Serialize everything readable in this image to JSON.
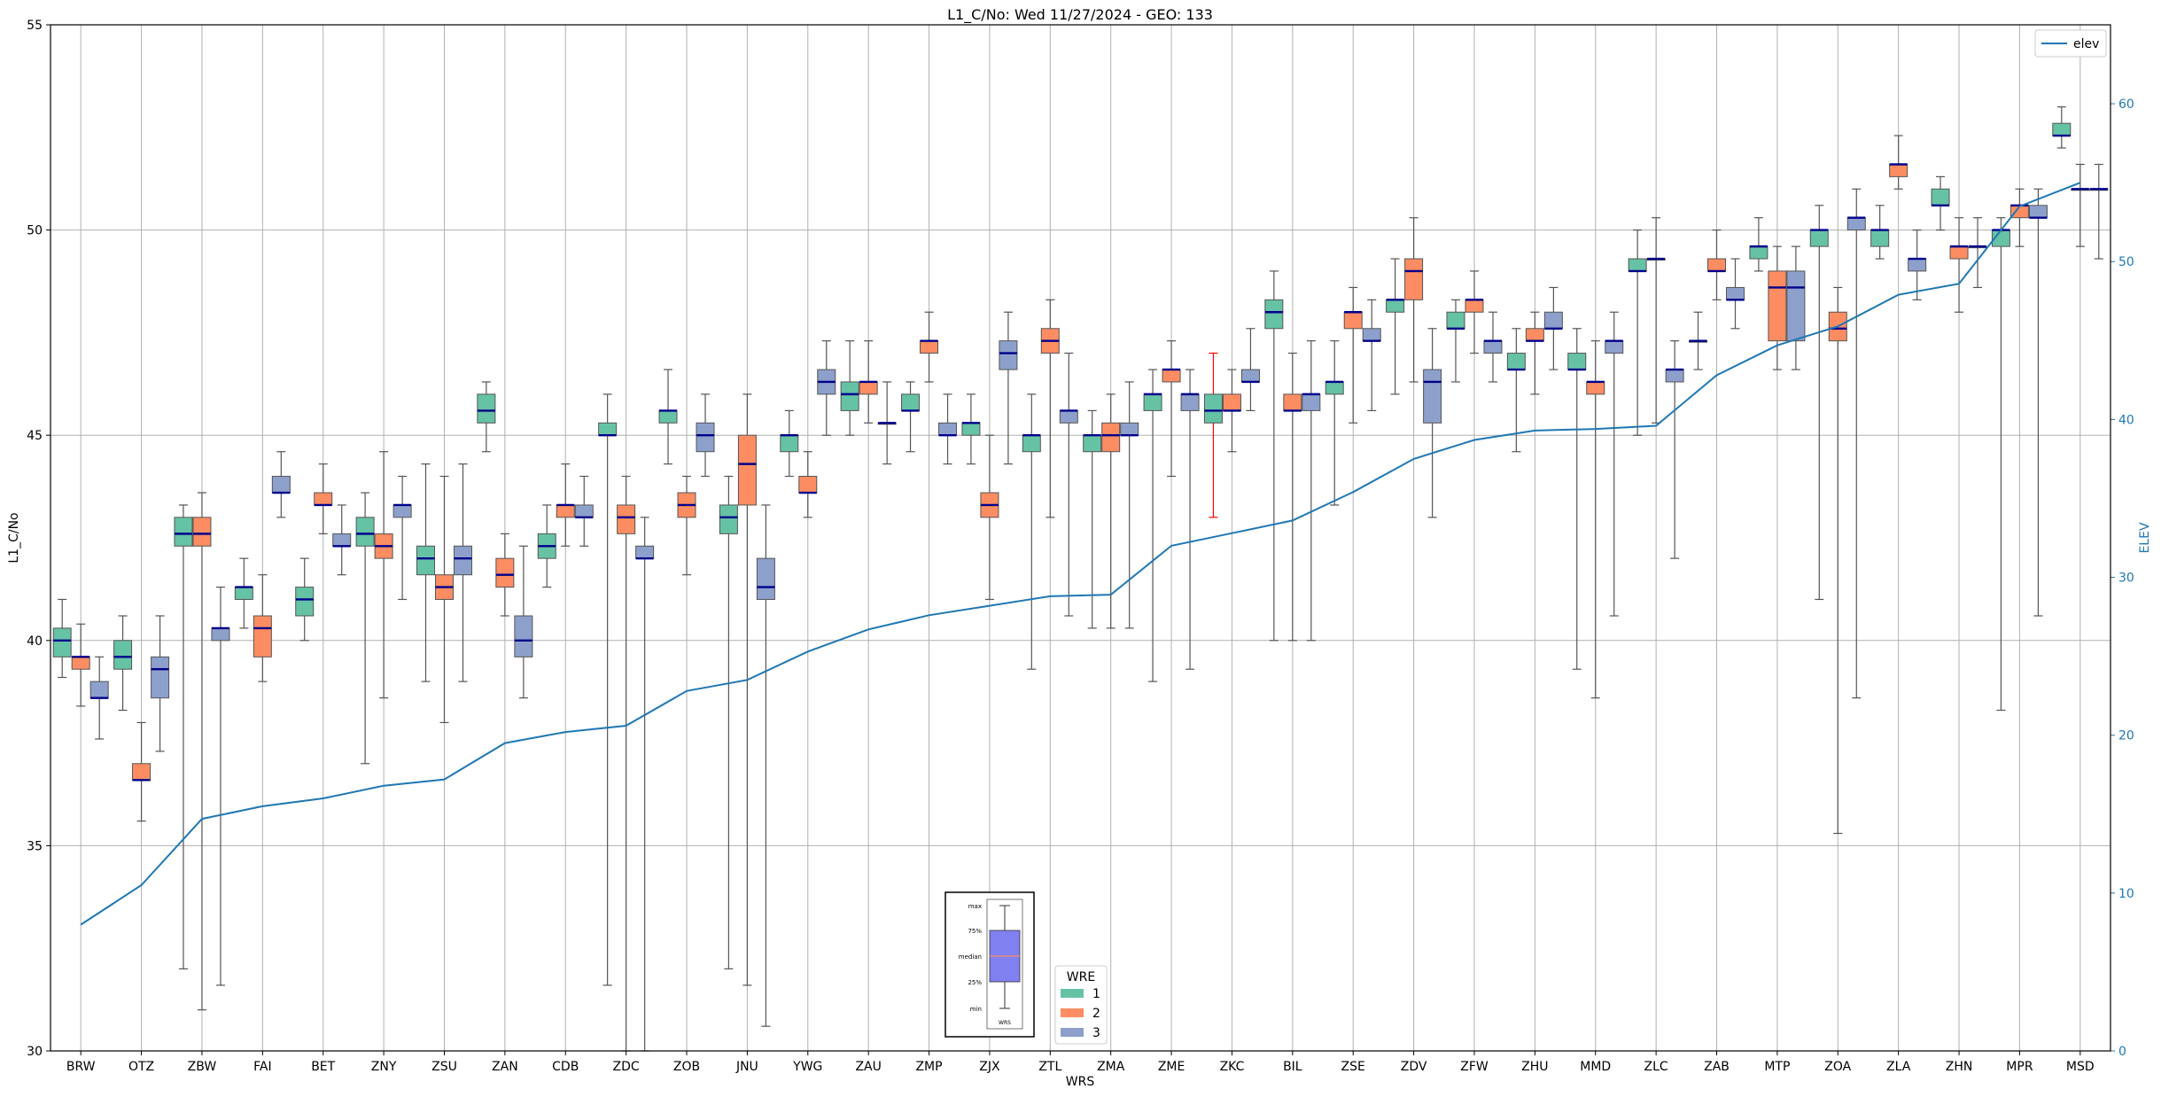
{
  "chart_data": {
    "type": "boxplot",
    "title": "L1_C/No: Wed 11/27/2024 - GEO: 133",
    "xlabel": "WRS",
    "ylabel": "L1_C/No",
    "y2label": "ELEV",
    "ylim": [
      30,
      55
    ],
    "y2lim": [
      0,
      65
    ],
    "yticks": [
      "30",
      "35",
      "40",
      "45",
      "50",
      "55"
    ],
    "y2ticks": [
      "0",
      "10",
      "20",
      "30",
      "40",
      "50",
      "60"
    ],
    "grid": true,
    "colors": {
      "1": "#66c2a5",
      "2": "#fc8d62",
      "3": "#8da0cb",
      "elev": "#1f77b4",
      "median": "#00008b",
      "highlight_whisker": "#ff0000"
    },
    "legend_elev": {
      "label": "elev",
      "placement": "top-right"
    },
    "legend_wre": {
      "title": "WRE",
      "entries": [
        "1",
        "2",
        "3"
      ],
      "placement": "bottom-center"
    },
    "key": {
      "labels": [
        "max",
        "75%",
        "median",
        "25%",
        "min"
      ],
      "xlabel": "WRS"
    },
    "categories": [
      "BRW",
      "OTZ",
      "ZBW",
      "FAI",
      "BET",
      "ZNY",
      "ZSU",
      "ZAN",
      "CDB",
      "ZDC",
      "ZOB",
      "JNU",
      "YWG",
      "ZAU",
      "ZMP",
      "ZJX",
      "ZTL",
      "ZMA",
      "ZME",
      "ZKC",
      "BIL",
      "ZSE",
      "ZDV",
      "ZFW",
      "ZHU",
      "MMD",
      "ZLC",
      "ZAB",
      "MTP",
      "ZOA",
      "ZLA",
      "ZHN",
      "MPR",
      "MSD"
    ],
    "elev": [
      8,
      10.5,
      14.7,
      15.5,
      16,
      16.8,
      17.2,
      19.5,
      20.2,
      20.6,
      22.8,
      23.5,
      25.3,
      26.7,
      27.6,
      28.2,
      28.8,
      28.9,
      32,
      32.8,
      33.6,
      35.4,
      37.5,
      38.7,
      39.3,
      39.4,
      39.6,
      42.8,
      44.7,
      45.9,
      47.9,
      48.6,
      53.5,
      55
    ],
    "boxes": [
      {
        "wrs": "BRW",
        "wre": 1,
        "min": 39.1,
        "q1": 39.6,
        "med": 40,
        "q3": 40.3,
        "max": 41
      },
      {
        "wrs": "BRW",
        "wre": 2,
        "min": 38.4,
        "q1": 39.3,
        "med": 39.6,
        "q3": 39.6,
        "max": 40.4
      },
      {
        "wrs": "BRW",
        "wre": 3,
        "min": 37.6,
        "q1": 38.6,
        "med": 38.6,
        "q3": 39,
        "max": 39.6
      },
      {
        "wrs": "OTZ",
        "wre": 1,
        "min": 38.3,
        "q1": 39.3,
        "med": 39.6,
        "q3": 40,
        "max": 40.6
      },
      {
        "wrs": "OTZ",
        "wre": 2,
        "min": 35.6,
        "q1": 36.6,
        "med": 36.6,
        "q3": 37,
        "max": 38
      },
      {
        "wrs": "OTZ",
        "wre": 3,
        "min": 37.3,
        "q1": 38.6,
        "med": 39.3,
        "q3": 39.6,
        "max": 40.6
      },
      {
        "wrs": "ZBW",
        "wre": 1,
        "min": 32,
        "q1": 42.3,
        "med": 42.6,
        "q3": 43,
        "max": 43.3
      },
      {
        "wrs": "ZBW",
        "wre": 2,
        "min": 31,
        "q1": 42.3,
        "med": 42.6,
        "q3": 43,
        "max": 43.6
      },
      {
        "wrs": "ZBW",
        "wre": 3,
        "min": 31.6,
        "q1": 40,
        "med": 40.3,
        "q3": 40.3,
        "max": 41.3
      },
      {
        "wrs": "FAI",
        "wre": 1,
        "min": 40.3,
        "q1": 41,
        "med": 41.3,
        "q3": 41.3,
        "max": 42
      },
      {
        "wrs": "FAI",
        "wre": 2,
        "min": 39,
        "q1": 39.6,
        "med": 40.3,
        "q3": 40.6,
        "max": 41.6
      },
      {
        "wrs": "FAI",
        "wre": 3,
        "min": 43,
        "q1": 43.6,
        "med": 43.6,
        "q3": 44,
        "max": 44.6
      },
      {
        "wrs": "BET",
        "wre": 1,
        "min": 40,
        "q1": 40.6,
        "med": 41,
        "q3": 41.3,
        "max": 42
      },
      {
        "wrs": "BET",
        "wre": 2,
        "min": 42.6,
        "q1": 43.3,
        "med": 43.3,
        "q3": 43.6,
        "max": 44.3
      },
      {
        "wrs": "BET",
        "wre": 3,
        "min": 41.6,
        "q1": 42.3,
        "med": 42.3,
        "q3": 42.6,
        "max": 43.3
      },
      {
        "wrs": "ZNY",
        "wre": 1,
        "min": 37,
        "q1": 42.3,
        "med": 42.6,
        "q3": 43,
        "max": 43.6
      },
      {
        "wrs": "ZNY",
        "wre": 2,
        "min": 38.6,
        "q1": 42,
        "med": 42.3,
        "q3": 42.6,
        "max": 44.6
      },
      {
        "wrs": "ZNY",
        "wre": 3,
        "min": 41,
        "q1": 43,
        "med": 43.3,
        "q3": 43.3,
        "max": 44
      },
      {
        "wrs": "ZSU",
        "wre": 1,
        "min": 39,
        "q1": 41.6,
        "med": 42,
        "q3": 42.3,
        "max": 44.3
      },
      {
        "wrs": "ZSU",
        "wre": 2,
        "min": 38,
        "q1": 41,
        "med": 41.3,
        "q3": 41.6,
        "max": 44
      },
      {
        "wrs": "ZSU",
        "wre": 3,
        "min": 39,
        "q1": 41.6,
        "med": 42,
        "q3": 42.3,
        "max": 44.3
      },
      {
        "wrs": "ZAN",
        "wre": 1,
        "min": 44.6,
        "q1": 45.3,
        "med": 45.6,
        "q3": 46,
        "max": 46.3
      },
      {
        "wrs": "ZAN",
        "wre": 2,
        "min": 40.6,
        "q1": 41.3,
        "med": 41.6,
        "q3": 42,
        "max": 42.6
      },
      {
        "wrs": "ZAN",
        "wre": 3,
        "min": 38.6,
        "q1": 39.6,
        "med": 40,
        "q3": 40.6,
        "max": 42.3
      },
      {
        "wrs": "CDB",
        "wre": 1,
        "min": 41.3,
        "q1": 42,
        "med": 42.3,
        "q3": 42.6,
        "max": 43.3
      },
      {
        "wrs": "CDB",
        "wre": 2,
        "min": 42.3,
        "q1": 43,
        "med": 43.3,
        "q3": 43.3,
        "max": 44.3
      },
      {
        "wrs": "CDB",
        "wre": 3,
        "min": 42.3,
        "q1": 43,
        "med": 43,
        "q3": 43.3,
        "max": 44
      },
      {
        "wrs": "ZDC",
        "wre": 1,
        "min": 31.6,
        "q1": 45,
        "med": 45,
        "q3": 45.3,
        "max": 46
      },
      {
        "wrs": "ZDC",
        "wre": 2,
        "min": 30,
        "q1": 42.6,
        "med": 43,
        "q3": 43.3,
        "max": 44
      },
      {
        "wrs": "ZDC",
        "wre": 3,
        "min": 30,
        "q1": 42,
        "med": 42,
        "q3": 42.3,
        "max": 43
      },
      {
        "wrs": "ZOB",
        "wre": 1,
        "min": 44.3,
        "q1": 45.3,
        "med": 45.6,
        "q3": 45.6,
        "max": 46.6
      },
      {
        "wrs": "ZOB",
        "wre": 2,
        "min": 41.6,
        "q1": 43,
        "med": 43.3,
        "q3": 43.6,
        "max": 44
      },
      {
        "wrs": "ZOB",
        "wre": 3,
        "min": 44,
        "q1": 44.6,
        "med": 45,
        "q3": 45.3,
        "max": 46
      },
      {
        "wrs": "JNU",
        "wre": 1,
        "min": 32,
        "q1": 42.6,
        "med": 43,
        "q3": 43.3,
        "max": 44
      },
      {
        "wrs": "JNU",
        "wre": 2,
        "min": 31.6,
        "q1": 43.3,
        "med": 44.3,
        "q3": 45,
        "max": 46
      },
      {
        "wrs": "JNU",
        "wre": 3,
        "min": 30.6,
        "q1": 41,
        "med": 41.3,
        "q3": 42,
        "max": 43.3
      },
      {
        "wrs": "YWG",
        "wre": 1,
        "min": 44,
        "q1": 44.6,
        "med": 45,
        "q3": 45,
        "max": 45.6
      },
      {
        "wrs": "YWG",
        "wre": 2,
        "min": 43,
        "q1": 43.6,
        "med": 43.6,
        "q3": 44,
        "max": 44.6
      },
      {
        "wrs": "YWG",
        "wre": 3,
        "min": 45,
        "q1": 46,
        "med": 46.3,
        "q3": 46.6,
        "max": 47.3
      },
      {
        "wrs": "ZAU",
        "wre": 1,
        "min": 45,
        "q1": 45.6,
        "med": 46,
        "q3": 46.3,
        "max": 47.3
      },
      {
        "wrs": "ZAU",
        "wre": 2,
        "min": 45.3,
        "q1": 46,
        "med": 46.3,
        "q3": 46.3,
        "max": 47.3
      },
      {
        "wrs": "ZAU",
        "wre": 3,
        "min": 44.3,
        "q1": 45.3,
        "med": 45.3,
        "q3": 45.3,
        "max": 46.3
      },
      {
        "wrs": "ZMP",
        "wre": 1,
        "min": 44.6,
        "q1": 45.6,
        "med": 45.6,
        "q3": 46,
        "max": 46.3
      },
      {
        "wrs": "ZMP",
        "wre": 2,
        "min": 46.3,
        "q1": 47,
        "med": 47.3,
        "q3": 47.3,
        "max": 48
      },
      {
        "wrs": "ZMP",
        "wre": 3,
        "min": 44.3,
        "q1": 45,
        "med": 45,
        "q3": 45.3,
        "max": 46
      },
      {
        "wrs": "ZJX",
        "wre": 1,
        "min": 44.3,
        "q1": 45,
        "med": 45.3,
        "q3": 45.3,
        "max": 46
      },
      {
        "wrs": "ZJX",
        "wre": 2,
        "min": 41,
        "q1": 43,
        "med": 43.3,
        "q3": 43.6,
        "max": 45
      },
      {
        "wrs": "ZJX",
        "wre": 3,
        "min": 44.3,
        "q1": 46.6,
        "med": 47,
        "q3": 47.3,
        "max": 48
      },
      {
        "wrs": "ZTL",
        "wre": 1,
        "min": 39.3,
        "q1": 44.6,
        "med": 45,
        "q3": 45,
        "max": 46
      },
      {
        "wrs": "ZTL",
        "wre": 2,
        "min": 43,
        "q1": 47,
        "med": 47.3,
        "q3": 47.6,
        "max": 48.3
      },
      {
        "wrs": "ZTL",
        "wre": 3,
        "min": 40.6,
        "q1": 45.3,
        "med": 45.6,
        "q3": 45.6,
        "max": 47
      },
      {
        "wrs": "ZMA",
        "wre": 1,
        "min": 40.3,
        "q1": 44.6,
        "med": 45,
        "q3": 45,
        "max": 45.6
      },
      {
        "wrs": "ZMA",
        "wre": 2,
        "min": 40.3,
        "q1": 44.6,
        "med": 45,
        "q3": 45.3,
        "max": 46
      },
      {
        "wrs": "ZMA",
        "wre": 3,
        "min": 40.3,
        "q1": 45,
        "med": 45,
        "q3": 45.3,
        "max": 46.3
      },
      {
        "wrs": "ZME",
        "wre": 1,
        "min": 39,
        "q1": 45.6,
        "med": 46,
        "q3": 46,
        "max": 46.6
      },
      {
        "wrs": "ZME",
        "wre": 2,
        "min": 44,
        "q1": 46.3,
        "med": 46.6,
        "q3": 46.6,
        "max": 47.3
      },
      {
        "wrs": "ZME",
        "wre": 3,
        "min": 39.3,
        "q1": 45.6,
        "med": 46,
        "q3": 46,
        "max": 46.6
      },
      {
        "wrs": "ZKC",
        "wre": 1,
        "min": 43,
        "q1": 45.3,
        "med": 45.6,
        "q3": 46,
        "max": 47,
        "red": true
      },
      {
        "wrs": "ZKC",
        "wre": 2,
        "min": 44.6,
        "q1": 45.6,
        "med": 45.6,
        "q3": 46,
        "max": 46.6
      },
      {
        "wrs": "ZKC",
        "wre": 3,
        "min": 45.6,
        "q1": 46.3,
        "med": 46.3,
        "q3": 46.6,
        "max": 47.6
      },
      {
        "wrs": "BIL",
        "wre": 1,
        "min": 40,
        "q1": 47.6,
        "med": 48,
        "q3": 48.3,
        "max": 49
      },
      {
        "wrs": "BIL",
        "wre": 2,
        "min": 40,
        "q1": 45.6,
        "med": 45.6,
        "q3": 46,
        "max": 47
      },
      {
        "wrs": "BIL",
        "wre": 3,
        "min": 40,
        "q1": 45.6,
        "med": 46,
        "q3": 46,
        "max": 47.3
      },
      {
        "wrs": "ZSE",
        "wre": 1,
        "min": 43.3,
        "q1": 46,
        "med": 46.3,
        "q3": 46.3,
        "max": 47.3
      },
      {
        "wrs": "ZSE",
        "wre": 2,
        "min": 45.3,
        "q1": 47.6,
        "med": 48,
        "q3": 48,
        "max": 48.6
      },
      {
        "wrs": "ZSE",
        "wre": 3,
        "min": 45.6,
        "q1": 47.3,
        "med": 47.3,
        "q3": 47.6,
        "max": 48.3
      },
      {
        "wrs": "ZDV",
        "wre": 1,
        "min": 46,
        "q1": 48,
        "med": 48.3,
        "q3": 48.3,
        "max": 49.3
      },
      {
        "wrs": "ZDV",
        "wre": 2,
        "min": 46.3,
        "q1": 48.3,
        "med": 49,
        "q3": 49.3,
        "max": 50.3
      },
      {
        "wrs": "ZDV",
        "wre": 3,
        "min": 43,
        "q1": 45.3,
        "med": 46.3,
        "q3": 46.6,
        "max": 47.6
      },
      {
        "wrs": "ZFW",
        "wre": 1,
        "min": 46.3,
        "q1": 47.6,
        "med": 47.6,
        "q3": 48,
        "max": 48.3
      },
      {
        "wrs": "ZFW",
        "wre": 2,
        "min": 47,
        "q1": 48,
        "med": 48.3,
        "q3": 48.3,
        "max": 49
      },
      {
        "wrs": "ZFW",
        "wre": 3,
        "min": 46.3,
        "q1": 47,
        "med": 47.3,
        "q3": 47.3,
        "max": 48
      },
      {
        "wrs": "ZHU",
        "wre": 1,
        "min": 44.6,
        "q1": 46.6,
        "med": 46.6,
        "q3": 47,
        "max": 47.6
      },
      {
        "wrs": "ZHU",
        "wre": 2,
        "min": 46,
        "q1": 47.3,
        "med": 47.3,
        "q3": 47.6,
        "max": 48
      },
      {
        "wrs": "ZHU",
        "wre": 3,
        "min": 46.6,
        "q1": 47.6,
        "med": 47.6,
        "q3": 48,
        "max": 48.6
      },
      {
        "wrs": "MMD",
        "wre": 1,
        "min": 39.3,
        "q1": 46.6,
        "med": 46.6,
        "q3": 47,
        "max": 47.6
      },
      {
        "wrs": "MMD",
        "wre": 2,
        "min": 38.6,
        "q1": 46,
        "med": 46.3,
        "q3": 46.3,
        "max": 47.3
      },
      {
        "wrs": "MMD",
        "wre": 3,
        "min": 40.6,
        "q1": 47,
        "med": 47.3,
        "q3": 47.3,
        "max": 48
      },
      {
        "wrs": "ZLC",
        "wre": 1,
        "min": 45,
        "q1": 49,
        "med": 49,
        "q3": 49.3,
        "max": 50
      },
      {
        "wrs": "ZLC",
        "wre": 2,
        "min": 45.3,
        "q1": 49.3,
        "med": 49.3,
        "q3": 49.3,
        "max": 50.3
      },
      {
        "wrs": "ZLC",
        "wre": 3,
        "min": 42,
        "q1": 46.3,
        "med": 46.6,
        "q3": 46.6,
        "max": 47.3
      },
      {
        "wrs": "ZAB",
        "wre": 1,
        "min": 46.6,
        "q1": 47.3,
        "med": 47.3,
        "q3": 47.3,
        "max": 48
      },
      {
        "wrs": "ZAB",
        "wre": 2,
        "min": 48.3,
        "q1": 49,
        "med": 49,
        "q3": 49.3,
        "max": 50
      },
      {
        "wrs": "ZAB",
        "wre": 3,
        "min": 47.6,
        "q1": 48.3,
        "med": 48.3,
        "q3": 48.6,
        "max": 49.3
      },
      {
        "wrs": "MTP",
        "wre": 1,
        "min": 49,
        "q1": 49.3,
        "med": 49.6,
        "q3": 49.6,
        "max": 50.3
      },
      {
        "wrs": "MTP",
        "wre": 2,
        "min": 46.6,
        "q1": 47.3,
        "med": 48.6,
        "q3": 49,
        "max": 49.6
      },
      {
        "wrs": "MTP",
        "wre": 3,
        "min": 46.6,
        "q1": 47.3,
        "med": 48.6,
        "q3": 49,
        "max": 49.6
      },
      {
        "wrs": "ZOA",
        "wre": 1,
        "min": 41,
        "q1": 49.6,
        "med": 50,
        "q3": 50,
        "max": 50.6
      },
      {
        "wrs": "ZOA",
        "wre": 2,
        "min": 35.3,
        "q1": 47.3,
        "med": 47.6,
        "q3": 48,
        "max": 48.6
      },
      {
        "wrs": "ZOA",
        "wre": 3,
        "min": 38.6,
        "q1": 50,
        "med": 50.3,
        "q3": 50.3,
        "max": 51
      },
      {
        "wrs": "ZLA",
        "wre": 1,
        "min": 49.3,
        "q1": 49.6,
        "med": 50,
        "q3": 50,
        "max": 50.6
      },
      {
        "wrs": "ZLA",
        "wre": 2,
        "min": 51,
        "q1": 51.3,
        "med": 51.6,
        "q3": 51.6,
        "max": 52.3
      },
      {
        "wrs": "ZLA",
        "wre": 3,
        "min": 48.3,
        "q1": 49,
        "med": 49.3,
        "q3": 49.3,
        "max": 50
      },
      {
        "wrs": "ZHN",
        "wre": 1,
        "min": 50,
        "q1": 50.6,
        "med": 50.6,
        "q3": 51,
        "max": 51.3
      },
      {
        "wrs": "ZHN",
        "wre": 2,
        "min": 48,
        "q1": 49.3,
        "med": 49.6,
        "q3": 49.6,
        "max": 50.3
      },
      {
        "wrs": "ZHN",
        "wre": 3,
        "min": 48.6,
        "q1": 49.6,
        "med": 49.6,
        "q3": 49.6,
        "max": 50.3
      },
      {
        "wrs": "MPR",
        "wre": 1,
        "min": 38.3,
        "q1": 49.6,
        "med": 50,
        "q3": 50,
        "max": 50.3
      },
      {
        "wrs": "MPR",
        "wre": 2,
        "min": 49.6,
        "q1": 50.3,
        "med": 50.6,
        "q3": 50.6,
        "max": 51
      },
      {
        "wrs": "MPR",
        "wre": 3,
        "min": 40.6,
        "q1": 50.3,
        "med": 50.3,
        "q3": 50.6,
        "max": 51
      },
      {
        "wrs": "MSD",
        "wre": 1,
        "min": 52,
        "q1": 52.3,
        "med": 52.3,
        "q3": 52.6,
        "max": 53
      },
      {
        "wrs": "MSD",
        "wre": 2,
        "min": 49.6,
        "q1": 51,
        "med": 51,
        "q3": 51,
        "max": 51.6
      },
      {
        "wrs": "MSD",
        "wre": 3,
        "min": 49.3,
        "q1": 51,
        "med": 51,
        "q3": 51,
        "max": 51.6
      }
    ]
  }
}
